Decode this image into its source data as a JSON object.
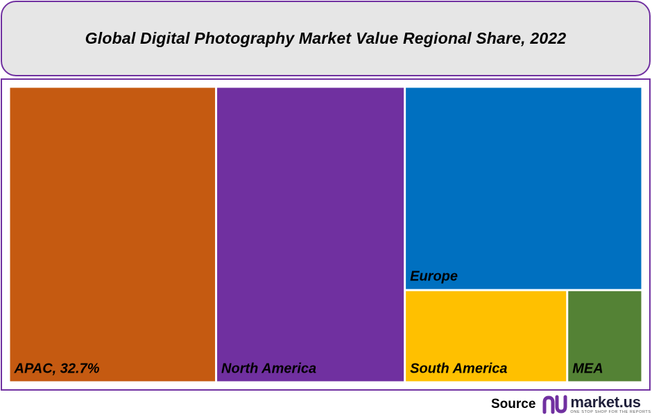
{
  "header": {
    "title": "Global Digital Photography Market Value Regional Share, 2022"
  },
  "chart_data": {
    "type": "treemap",
    "title": "Global Digital Photography Market Value Regional Share, 2022",
    "tiles": [
      {
        "name": "APAC",
        "label": "APAC, 32.7%",
        "value": 32.7,
        "color": "#c55a11"
      },
      {
        "name": "North America",
        "label": "North America",
        "value": 29.8,
        "color": "#7030a0"
      },
      {
        "name": "Europe",
        "label": "Europe",
        "value": 25.8,
        "color": "#0070c0"
      },
      {
        "name": "South America",
        "label": "South America",
        "value": 8.0,
        "color": "#ffc000"
      },
      {
        "name": "MEA",
        "label": "MEA",
        "value": 3.7,
        "color": "#548235"
      }
    ]
  },
  "footer": {
    "source_label": "Source",
    "logo_name": "market.us",
    "logo_tagline": "ONE STOP SHOP FOR THE REPORTS",
    "logo_color": "#7030a0"
  }
}
